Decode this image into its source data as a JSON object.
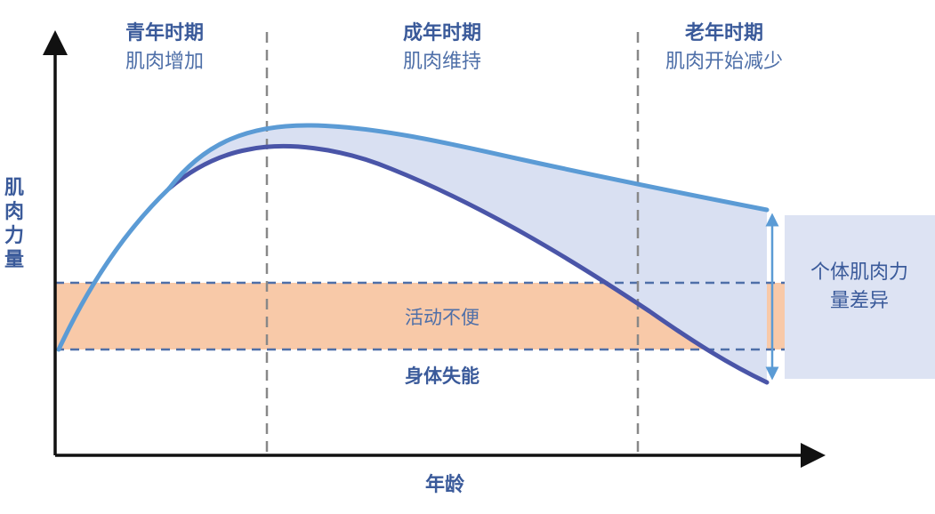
{
  "phases": [
    {
      "title": "青年时期",
      "subtitle": "肌肉增加"
    },
    {
      "title": "成年时期",
      "subtitle": "肌肉维持"
    },
    {
      "title": "老年时期",
      "subtitle": "肌肉开始减少"
    }
  ],
  "y_axis_label": [
    "肌",
    "肉",
    "力",
    "量"
  ],
  "x_axis_label": "年龄",
  "band_label": "活动不便",
  "threshold_label": "身体失能",
  "difference_label": [
    "个体肌肉力",
    "量差异"
  ],
  "colors": {
    "upper_curve": "#5b9bd5",
    "lower_curve": "#4a55a8",
    "fill_between": "#d9e0f2",
    "mobility_band": "#f8c9a8",
    "dashed_line": "#4e6fa8",
    "phase_divider": "#888888",
    "difference_box": "#dde3f3"
  }
}
